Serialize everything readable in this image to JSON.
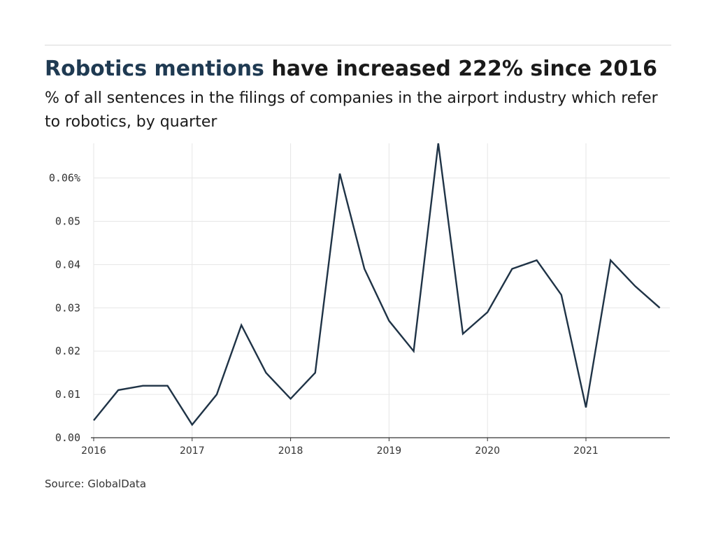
{
  "header": {
    "title_accent": "Robotics mentions",
    "title_rest": " have increased 222% since 2016",
    "subtitle": "% of all sentences in the filings of companies in the airport industry which refer to robotics, by quarter"
  },
  "source": "Source: GlobalData",
  "colors": {
    "line": "#1f3346",
    "accent": "#1f3a52",
    "grid": "#e6e6e6"
  },
  "chart_data": {
    "type": "line",
    "title": "Robotics mentions have increased 222% since 2016",
    "subtitle": "% of all sentences in the filings of companies in the airport industry which refer to robotics, by quarter",
    "xlabel": "",
    "ylabel": "",
    "x": [
      "2016-Q1",
      "2016-Q2",
      "2016-Q3",
      "2016-Q4",
      "2017-Q1",
      "2017-Q2",
      "2017-Q3",
      "2017-Q4",
      "2018-Q1",
      "2018-Q2",
      "2018-Q3",
      "2018-Q4",
      "2019-Q1",
      "2019-Q2",
      "2019-Q3",
      "2019-Q4",
      "2020-Q1",
      "2020-Q2",
      "2020-Q3",
      "2020-Q4",
      "2021-Q1",
      "2021-Q2",
      "2021-Q3",
      "2021-Q4"
    ],
    "series": [
      {
        "values": [
          0.004,
          0.011,
          0.012,
          0.012,
          0.003,
          0.01,
          0.026,
          0.015,
          0.009,
          0.015,
          0.061,
          0.039,
          0.027,
          0.02,
          0.068,
          0.024,
          0.029,
          0.039,
          0.041,
          0.033,
          0.007,
          0.041,
          0.035,
          0.03
        ]
      }
    ],
    "ylim": [
      0,
      0.068
    ],
    "y_ticks": [
      {
        "value": 0,
        "label": "0.00"
      },
      {
        "value": 0.01,
        "label": "0.01"
      },
      {
        "value": 0.02,
        "label": "0.02"
      },
      {
        "value": 0.03,
        "label": "0.03"
      },
      {
        "value": 0.04,
        "label": "0.04"
      },
      {
        "value": 0.05,
        "label": "0.05"
      },
      {
        "value": 0.06,
        "label": "0.06%"
      }
    ],
    "x_ticks": [
      {
        "index": 0,
        "label": "2016"
      },
      {
        "index": 4,
        "label": "2017"
      },
      {
        "index": 8,
        "label": "2018"
      },
      {
        "index": 12,
        "label": "2019"
      },
      {
        "index": 16,
        "label": "2020"
      },
      {
        "index": 20,
        "label": "2021"
      }
    ],
    "grid": true,
    "legend": "none"
  }
}
